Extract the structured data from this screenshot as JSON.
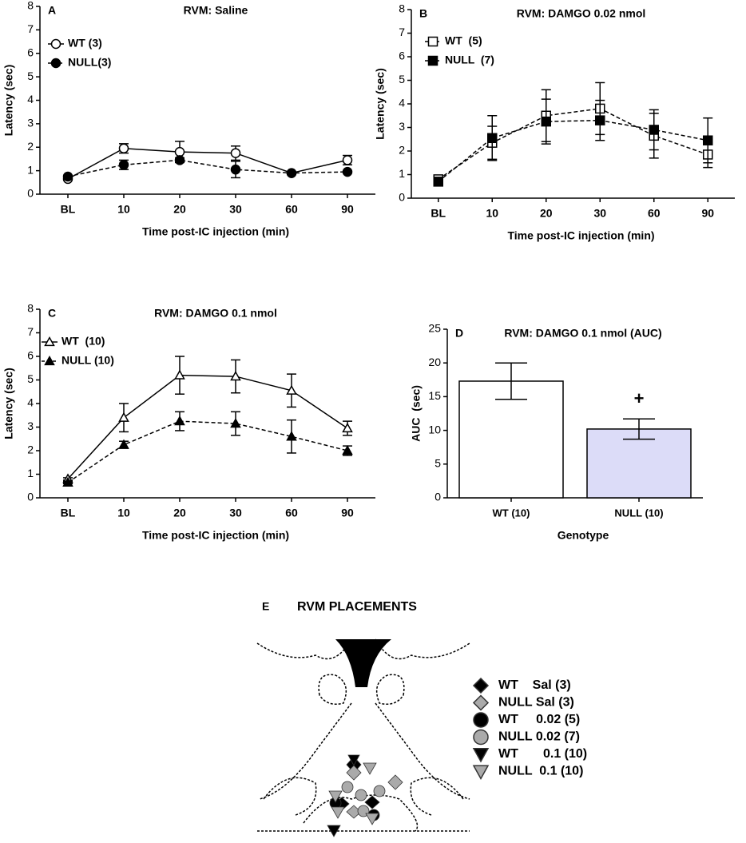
{
  "chart_data": [
    {
      "type": "line",
      "panel": "A",
      "title": "RVM: Saline",
      "y_label": "Latency (sec)",
      "x_label": "Time post-IC injection (min)",
      "categories": [
        "BL",
        "10",
        "20",
        "30",
        "60",
        "90"
      ],
      "ylim": [
        0,
        8
      ],
      "yticks": [
        0,
        1,
        2,
        3,
        4,
        5,
        6,
        7,
        8
      ],
      "series": [
        {
          "name": "WT (3)",
          "marker": "circle",
          "filled": false,
          "dashed": false,
          "color": "#000000",
          "values": [
            0.65,
            1.95,
            1.8,
            1.75,
            0.9,
            1.45
          ],
          "errors": [
            0.05,
            0.2,
            0.45,
            0.3,
            0.05,
            0.2
          ]
        },
        {
          "name": "NULL(3)",
          "marker": "circle",
          "filled": true,
          "dashed": true,
          "color": "#000000",
          "values": [
            0.75,
            1.25,
            1.45,
            1.05,
            0.9,
            0.95
          ],
          "errors": [
            0.05,
            0.2,
            0.1,
            0.35,
            0.05,
            0.05
          ]
        }
      ]
    },
    {
      "type": "line",
      "panel": "B",
      "title": "RVM: DAMGO 0.02 nmol",
      "y_label": "Latency (sec)",
      "x_label": "Time post-IC injection (min)",
      "categories": [
        "BL",
        "10",
        "20",
        "30",
        "60",
        "90"
      ],
      "ylim": [
        0,
        8
      ],
      "yticks": [
        0,
        1,
        2,
        3,
        4,
        5,
        6,
        7,
        8
      ],
      "series": [
        {
          "name": "WT  (5)",
          "marker": "square",
          "filled": false,
          "dashed": true,
          "color": "#000000",
          "values": [
            0.8,
            2.35,
            3.5,
            3.8,
            2.65,
            1.85
          ],
          "errors": [
            0.1,
            0.7,
            1.1,
            1.1,
            0.95,
            0.55
          ]
        },
        {
          "name": "NULL  (7)",
          "marker": "square",
          "filled": true,
          "dashed": true,
          "color": "#000000",
          "values": [
            0.7,
            2.55,
            3.25,
            3.3,
            2.9,
            2.45
          ],
          "errors": [
            0.1,
            0.95,
            0.95,
            0.85,
            0.85,
            0.95
          ]
        }
      ]
    },
    {
      "type": "line",
      "panel": "C",
      "title": "RVM: DAMGO 0.1 nmol",
      "y_label": "Latency (sec)",
      "x_label": "Time post-IC injection (min)",
      "categories": [
        "BL",
        "10",
        "20",
        "30",
        "60",
        "90"
      ],
      "ylim": [
        0,
        8
      ],
      "yticks": [
        0,
        1,
        2,
        3,
        4,
        5,
        6,
        7,
        8
      ],
      "series": [
        {
          "name": "WT  (10)",
          "marker": "triangle",
          "filled": false,
          "dashed": false,
          "color": "#000000",
          "values": [
            0.8,
            3.4,
            5.2,
            5.15,
            4.55,
            2.95
          ],
          "errors": [
            0.05,
            0.6,
            0.8,
            0.7,
            0.7,
            0.3
          ]
        },
        {
          "name": "NULL (10)",
          "marker": "triangle",
          "filled": true,
          "dashed": true,
          "color": "#000000",
          "values": [
            0.65,
            2.25,
            3.25,
            3.15,
            2.6,
            2.0
          ],
          "errors": [
            0.05,
            0.15,
            0.4,
            0.5,
            0.7,
            0.2
          ]
        }
      ]
    },
    {
      "type": "bar",
      "panel": "D",
      "title": "RVM: DAMGO 0.1 nmol (AUC)",
      "y_label": "AUC  (sec)",
      "x_label": "Genotype",
      "categories": [
        "WT (10)",
        "NULL (10)"
      ],
      "values": [
        17.3,
        10.2
      ],
      "errors": [
        2.7,
        1.5
      ],
      "colors": [
        "#ffffff",
        "#dcdcf8"
      ],
      "annotation": "+",
      "ylim": [
        0,
        25
      ],
      "yticks": [
        0,
        5,
        10,
        15,
        20,
        25
      ]
    }
  ],
  "placements": {
    "panel": "E",
    "title": "RVM PLACEMENTS",
    "legend": [
      {
        "label": "WT    Sal (3)",
        "marker": "diamond",
        "color": "#000000"
      },
      {
        "label": "NULL Sal (3)",
        "marker": "diamond",
        "color": "#aaaaaa"
      },
      {
        "label": "WT     0.02 (5)",
        "marker": "circle",
        "color": "#000000"
      },
      {
        "label": "NULL 0.02 (7)",
        "marker": "circle",
        "color": "#aaaaaa"
      },
      {
        "label": "WT       0.1 (10)",
        "marker": "down-triangle",
        "color": "#000000"
      },
      {
        "label": "NULL  0.1 (10)",
        "marker": "down-triangle",
        "color": "#aaaaaa"
      }
    ]
  }
}
